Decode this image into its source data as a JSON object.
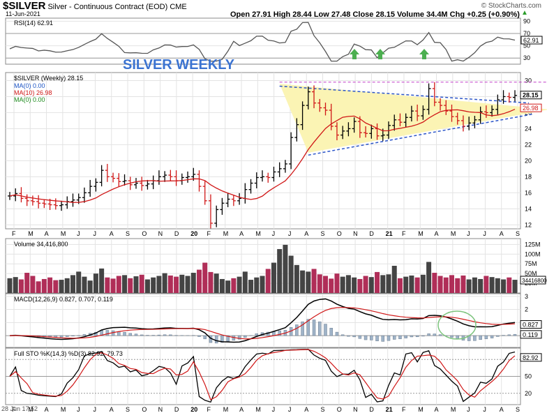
{
  "header": {
    "symbol": "$SILVER",
    "description": "Silver - Continuous Contract (EOD)",
    "exchange": "CME",
    "date": "11-Jun-2021",
    "quote": "Open 27.91  High 28.44  Low 27.48  Close 28.15  Volume 34.4M  Chg +0.25 (+0.90%)",
    "arrow": "▲",
    "brand": "© StockCharts.com"
  },
  "annotation": "SILVER WEEKLY",
  "footer_date": "28 Jun 17:52",
  "colors": {
    "price_up": "#000000",
    "ma10": "#d01717",
    "triangle": "#fbf4b4",
    "volume_up": "#444444",
    "volume_down": "#b02e58",
    "arrow": "#4caf50",
    "circle": "#7dc47d"
  },
  "chart_data": [
    {
      "type": "line",
      "panel": "rsi",
      "label": "RSI(14) 62.91",
      "last": 62.91,
      "ylim": [
        20,
        95
      ],
      "yticks": [
        30,
        50,
        70,
        90
      ],
      "reference_lines": [
        30,
        70
      ],
      "markers": [
        "up-arrow",
        "up-arrow",
        "up-arrow"
      ]
    },
    {
      "type": "candlestick",
      "panel": "price",
      "title": "$SILVER (Weekly) 28.15",
      "legend": [
        "MA(0) 0.00",
        "MA(10) 26.98",
        "MA(0) 0.00"
      ],
      "last": 28.15,
      "ma10_last": 26.98,
      "ylim": [
        11.5,
        31
      ],
      "yticks": [
        12,
        14,
        16,
        18,
        20,
        22,
        24,
        26,
        28,
        30
      ],
      "x_labels": [
        "F",
        "M",
        "A",
        "M",
        "J",
        "J",
        "A",
        "S",
        "O",
        "N",
        "D",
        "20",
        "F",
        "M",
        "A",
        "M",
        "J",
        "J",
        "A",
        "S",
        "O",
        "N",
        "D",
        "21",
        "F",
        "M",
        "A",
        "M",
        "J",
        "J",
        "A",
        "S"
      ],
      "closes": [
        15.6,
        15.9,
        15.3,
        15.0,
        14.9,
        14.7,
        14.6,
        14.5,
        14.4,
        14.5,
        14.9,
        15.1,
        15.4,
        16.0,
        16.8,
        17.3,
        18.8,
        18.0,
        17.8,
        17.4,
        17.5,
        17.0,
        17.2,
        16.9,
        17.1,
        17.5,
        18.0,
        18.2,
        18.0,
        17.5,
        17.9,
        18.0,
        18.3,
        16.8,
        15.0,
        12.2,
        13.9,
        14.7,
        15.2,
        15.0,
        15.3,
        16.4,
        17.2,
        17.9,
        18.0,
        17.9,
        18.6,
        19.0,
        19.6,
        22.9,
        24.5,
        26.9,
        28.6,
        27.2,
        26.6,
        26.3,
        24.3,
        23.2,
        23.7,
        24.0,
        24.9,
        23.5,
        23.4,
        24.0,
        23.1,
        23.2,
        24.4,
        25.1,
        24.8,
        25.4,
        26.2,
        25.6,
        26.4,
        29.0,
        27.3,
        26.9,
        26.2,
        25.5,
        25.0,
        24.3,
        24.7,
        25.1,
        26.1,
        26.0,
        26.4,
        27.6,
        28.0,
        27.9,
        28.15
      ],
      "trendlines": [
        {
          "from": [
            "2020-08",
            29.3
          ],
          "to": [
            "2021-06",
            27.4
          ]
        },
        {
          "from": [
            "2020-09",
            21.0
          ],
          "to": [
            "2021-06",
            25.8
          ]
        },
        {
          "from": [
            "2020-08",
            29.8
          ],
          "to": [
            "2021-06",
            29.8
          ],
          "style": "dashed"
        }
      ]
    },
    {
      "type": "bar",
      "panel": "volume",
      "label": "Volume 34,416,800",
      "last_label": "34416800",
      "ylim": [
        0,
        140
      ],
      "yticks_labels": [
        "125M",
        "100M",
        "75M",
        "50M",
        "25M"
      ],
      "yticks": [
        125,
        100,
        75,
        50,
        25
      ],
      "values_millions": [
        38,
        41,
        35,
        52,
        44,
        30,
        36,
        40,
        33,
        34,
        38,
        46,
        55,
        42,
        32,
        50,
        63,
        40,
        37,
        44,
        46,
        38,
        43,
        47,
        35,
        40,
        44,
        51,
        45,
        42,
        47,
        44,
        52,
        60,
        78,
        54,
        50,
        36,
        32,
        38,
        42,
        55,
        34,
        40,
        44,
        62,
        78,
        113,
        124,
        96,
        72,
        58,
        55,
        62,
        48,
        44,
        37,
        50,
        42,
        46,
        40,
        36,
        44,
        41,
        54,
        46,
        48,
        70,
        38,
        42,
        45,
        40,
        47,
        80,
        52,
        44,
        40,
        46,
        38,
        45,
        35,
        40,
        36,
        44,
        41,
        38,
        35,
        40,
        34
      ]
    },
    {
      "type": "line",
      "panel": "macd",
      "label": "MACD(12,26,9) 0.827, 0.707, 0.119",
      "values": {
        "macd": 0.827,
        "signal": 0.707,
        "histogram": 0.119
      },
      "ylim": [
        -0.9,
        3.2
      ],
      "yticks": [
        0,
        1,
        2,
        3
      ],
      "right_labels": [
        "0.827",
        "0.119"
      ]
    },
    {
      "type": "line",
      "panel": "stochastic",
      "label": "Full STO %K(14,3) %D(3) 82.92, 79.73",
      "values": {
        "k": 82.92,
        "d": 79.73
      },
      "ylim": [
        0,
        100
      ],
      "yticks": [
        20,
        50,
        80
      ],
      "right_labels": [
        "82.92"
      ],
      "reference_lines": [
        20,
        80
      ]
    }
  ]
}
